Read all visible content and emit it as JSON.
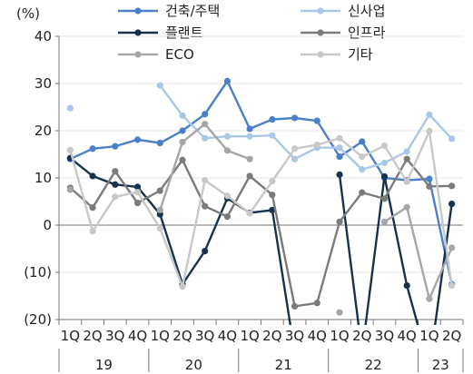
{
  "chart_data": {
    "type": "line",
    "ylabel": "(%)",
    "ylim": [
      -20,
      40
    ],
    "yticks": [
      {
        "v": 40,
        "label": "40"
      },
      {
        "v": 30,
        "label": "30"
      },
      {
        "v": 20,
        "label": "20"
      },
      {
        "v": 10,
        "label": "10"
      },
      {
        "v": 0,
        "label": "0"
      },
      {
        "v": -10,
        "label": "(10)"
      },
      {
        "v": -20,
        "label": "(20)"
      }
    ],
    "categories": [
      "1Q",
      "2Q",
      "3Q",
      "4Q",
      "1Q",
      "2Q",
      "3Q",
      "4Q",
      "1Q",
      "2Q",
      "3Q",
      "4Q",
      "1Q",
      "2Q",
      "3Q",
      "4Q",
      "1Q",
      "2Q"
    ],
    "year_groups": [
      {
        "label": "19",
        "start": 0,
        "end": 3
      },
      {
        "label": "20",
        "start": 4,
        "end": 7
      },
      {
        "label": "21",
        "start": 8,
        "end": 11
      },
      {
        "label": "22",
        "start": 12,
        "end": 15
      },
      {
        "label": "23",
        "start": 16,
        "end": 17
      }
    ],
    "legend_position": "top",
    "series": [
      {
        "name": "건축/주택",
        "color": "#4a7fc9",
        "marker": true,
        "values": [
          14,
          16.2,
          16.7,
          18.1,
          17.4,
          20,
          23.5,
          30.5,
          20.4,
          22.4,
          22.7,
          22.1,
          14.5,
          17.7,
          10,
          9.5,
          9.8,
          -12.5
        ]
      },
      {
        "name": "신사업",
        "color": "#a9c7e6",
        "marker": true,
        "values": [
          24.8,
          null,
          null,
          null,
          29.6,
          23.2,
          18.4,
          18.8,
          18.8,
          19,
          14,
          16.4,
          16.4,
          11.8,
          13.2,
          15.6,
          23.4,
          18.3
        ]
      },
      {
        "name": "플랜트",
        "color": "#17324f",
        "marker": true,
        "values": [
          14.2,
          10.4,
          8.6,
          8.1,
          2.3,
          -12.5,
          -5.5,
          5.7,
          2.6,
          3.2,
          -27,
          null,
          10.7,
          -27,
          10.3,
          -12.8,
          -30,
          4.5
        ]
      },
      {
        "name": "인프라",
        "color": "#7b7b7b",
        "marker": true,
        "values": [
          7.9,
          3.7,
          11.4,
          4.7,
          7.3,
          13.8,
          4,
          1.8,
          10.4,
          6.4,
          -17.2,
          -16.5,
          0.7,
          6.9,
          5.6,
          14,
          8.2,
          8.3
        ]
      },
      {
        "name": "ECO",
        "color": "#a6a6a6",
        "marker": true,
        "values": [
          7.5,
          null,
          null,
          null,
          3.2,
          17.6,
          21.4,
          15.8,
          14,
          null,
          null,
          null,
          -18.5,
          null,
          0.7,
          3.8,
          -15.6,
          -4.8
        ]
      },
      {
        "name": "기타",
        "color": "#c8c8c8",
        "marker": true,
        "values": [
          15.9,
          -1.3,
          6,
          7,
          -0.7,
          -13,
          9.5,
          6.2,
          2.5,
          9.3,
          16.2,
          17,
          18.4,
          14.5,
          16.8,
          9.2,
          19.9,
          -12.8
        ]
      }
    ]
  }
}
